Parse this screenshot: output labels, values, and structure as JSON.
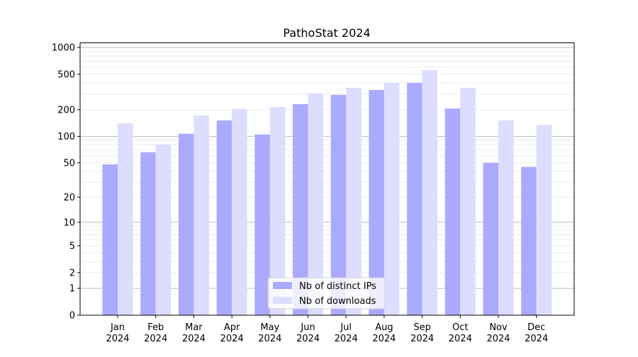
{
  "chart_data": {
    "type": "bar",
    "title": "PathoStat 2024",
    "xlabel": "",
    "ylabel": "",
    "yscale": "log(1+y)",
    "ylim": [
      0,
      1100
    ],
    "yticks": [
      0,
      1,
      2,
      5,
      10,
      20,
      50,
      100,
      200,
      500,
      1000
    ],
    "ytick_labels": [
      "0",
      "1",
      "2",
      "5",
      "10",
      "20",
      "50",
      "100",
      "200",
      "500",
      "1000"
    ],
    "categories": [
      "Jan\n2024",
      "Feb\n2024",
      "Mar\n2024",
      "Apr\n2024",
      "May\n2024",
      "Jun\n2024",
      "Jul\n2024",
      "Aug\n2024",
      "Sep\n2024",
      "Oct\n2024",
      "Nov\n2024",
      "Dec\n2024"
    ],
    "category_month": [
      "Jan",
      "Feb",
      "Mar",
      "Apr",
      "May",
      "Jun",
      "Jul",
      "Aug",
      "Sep",
      "Oct",
      "Nov",
      "Dec"
    ],
    "category_year": "2024",
    "series": [
      {
        "name": "Nb of distinct IPs",
        "color": "#aaaaff",
        "values": [
          48,
          66,
          107,
          151,
          105,
          231,
          293,
          333,
          400,
          206,
          50,
          45
        ]
      },
      {
        "name": "Nb of downloads",
        "color": "#ddddff",
        "values": [
          140,
          81,
          172,
          203,
          214,
          304,
          352,
          400,
          556,
          352,
          151,
          135
        ]
      }
    ],
    "grid": true,
    "legend": "bottom-center"
  }
}
